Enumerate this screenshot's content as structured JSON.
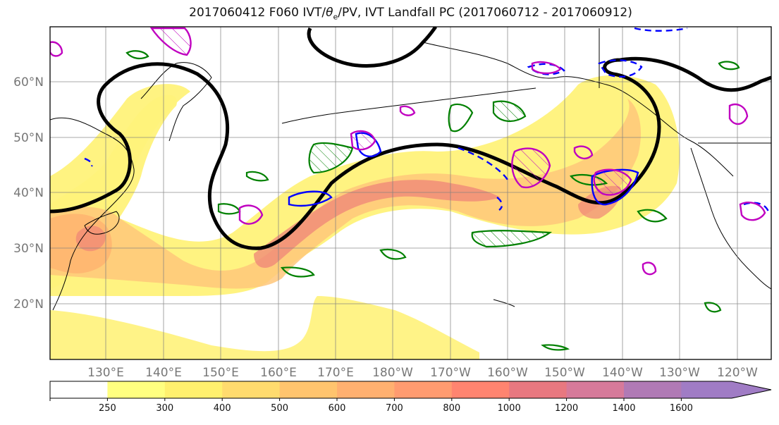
{
  "title": {
    "prefix": "2017060412 F060 IVT/",
    "theta": "θ",
    "theta_sub": "e",
    "suffix": "/PV, IVT Landfall PC (2017060712 - 2017060912)"
  },
  "map": {
    "lat_labels": [
      "60°N",
      "50°N",
      "40°N",
      "30°N",
      "20°N"
    ],
    "lon_labels": [
      "130°E",
      "140°E",
      "150°E",
      "160°E",
      "170°E",
      "180°W",
      "170°W",
      "160°W",
      "150°W",
      "140°W",
      "130°W",
      "120°W"
    ]
  },
  "colorbar": {
    "levels": [
      "250",
      "300",
      "400",
      "500",
      "600",
      "700",
      "800",
      "1000",
      "1200",
      "1400",
      "1600"
    ],
    "colors": [
      "#ffffff",
      "#ffff80",
      "#fff06e",
      "#ffdb6e",
      "#ffc46e",
      "#ffb070",
      "#ff9b70",
      "#ff8470",
      "#e87880",
      "#d67a9a",
      "#b07ab5",
      "#a07cc5"
    ]
  },
  "colors": {
    "ivt_low": "#fff27a",
    "ivt_mid": "#ffb873",
    "ivt_high": "#ef7f78",
    "ridge_contour": "#000000",
    "theta_contour": "#008000",
    "pv_contour": "#0000ff",
    "pv_magenta": "#c000c0"
  }
}
